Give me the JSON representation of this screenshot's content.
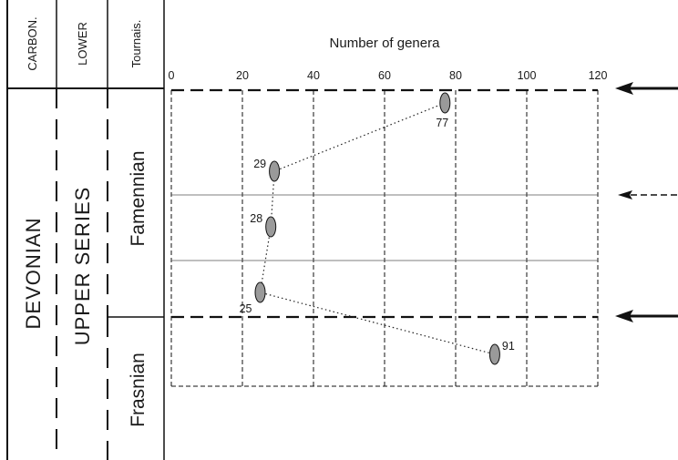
{
  "stratigraphy": {
    "system_top": "CARBON.",
    "series_top": "LOWER",
    "stage_top": "Tournais.",
    "system": "DEVONIAN",
    "series": "UPPER SERIES",
    "stage_upper": "Famennian",
    "stage_lower": "Frasnian"
  },
  "chart_data": {
    "type": "scatter",
    "title": "Number of genera",
    "xlim": [
      0,
      120
    ],
    "x_ticks": [
      0,
      20,
      40,
      60,
      80,
      100,
      120
    ],
    "grid": true,
    "points": [
      {
        "value": 77,
        "label": "77"
      },
      {
        "value": 29,
        "label": "29"
      },
      {
        "value": 28,
        "label": "28"
      },
      {
        "value": 25,
        "label": "25"
      },
      {
        "value": 91,
        "label": "91"
      }
    ]
  }
}
